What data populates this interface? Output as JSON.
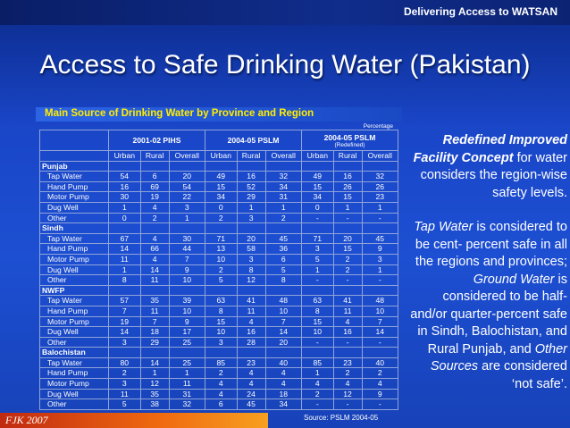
{
  "header": {
    "tagline": "Delivering Access to WATSAN",
    "title": "Access to Safe Drinking Water (Pakistan)",
    "subtitle": "Main Source of Drinking Water by Province and Region",
    "footer": "FJK 2007"
  },
  "table": {
    "unit": "Percentage",
    "groups": [
      {
        "name": "2001-02 PIHS"
      },
      {
        "name": "2004-05 PSLM"
      },
      {
        "name": "2004-05 PSLM",
        "note": "(Redefined)"
      }
    ],
    "subcolumns": [
      "Urban",
      "Rural",
      "Overall",
      "Urban",
      "Rural",
      "Overall",
      "Urban",
      "Rural",
      "Overall"
    ],
    "sections": [
      {
        "name": "Punjab",
        "rows": [
          {
            "label": "Tap Water",
            "cells": [
              54,
              6,
              20,
              49,
              16,
              32,
              49,
              16,
              32
            ]
          },
          {
            "label": "Hand Pump",
            "cells": [
              16,
              69,
              54,
              15,
              52,
              34,
              15,
              26,
              26
            ]
          },
          {
            "label": "Motor Pump",
            "cells": [
              30,
              19,
              22,
              34,
              29,
              31,
              34,
              15,
              23
            ]
          },
          {
            "label": "Dug Well",
            "cells": [
              1,
              4,
              3,
              0,
              1,
              1,
              0,
              1,
              1
            ]
          },
          {
            "label": "Other",
            "cells": [
              0,
              2,
              1,
              2,
              3,
              2,
              "-",
              "-",
              "-"
            ]
          }
        ]
      },
      {
        "name": "Sindh",
        "rows": [
          {
            "label": "Tap Water",
            "cells": [
              67,
              4,
              30,
              71,
              20,
              45,
              71,
              20,
              45
            ]
          },
          {
            "label": "Hand Pump",
            "cells": [
              14,
              66,
              44,
              13,
              58,
              36,
              3,
              15,
              9
            ]
          },
          {
            "label": "Motor Pump",
            "cells": [
              11,
              4,
              7,
              10,
              3,
              6,
              5,
              2,
              3
            ]
          },
          {
            "label": "Dug Well",
            "cells": [
              1,
              14,
              9,
              2,
              8,
              5,
              1,
              2,
              1
            ]
          },
          {
            "label": "Other",
            "cells": [
              8,
              11,
              10,
              5,
              12,
              8,
              "-",
              "-",
              "-"
            ]
          }
        ]
      },
      {
        "name": "NWFP",
        "rows": [
          {
            "label": "Tap Water",
            "cells": [
              57,
              35,
              39,
              63,
              41,
              48,
              63,
              41,
              48
            ]
          },
          {
            "label": "Hand Pump",
            "cells": [
              7,
              11,
              10,
              8,
              11,
              10,
              8,
              11,
              10
            ]
          },
          {
            "label": "Motor Pump",
            "cells": [
              19,
              7,
              9,
              15,
              4,
              7,
              15,
              4,
              7
            ]
          },
          {
            "label": "Dug Well",
            "cells": [
              14,
              18,
              17,
              10,
              16,
              14,
              10,
              16,
              14
            ]
          },
          {
            "label": "Other",
            "cells": [
              3,
              29,
              25,
              3,
              28,
              20,
              "-",
              "-",
              "-"
            ]
          }
        ]
      },
      {
        "name": "Balochistan",
        "rows": [
          {
            "label": "Tap Water",
            "cells": [
              80,
              14,
              25,
              85,
              23,
              40,
              85,
              23,
              40
            ]
          },
          {
            "label": "Hand Pump",
            "cells": [
              2,
              1,
              1,
              2,
              4,
              4,
              1,
              2,
              2
            ]
          },
          {
            "label": "Motor Pump",
            "cells": [
              3,
              12,
              11,
              4,
              4,
              4,
              4,
              4,
              4
            ]
          },
          {
            "label": "Dug Well",
            "cells": [
              11,
              35,
              31,
              4,
              24,
              18,
              2,
              12,
              9
            ]
          },
          {
            "label": "Other",
            "cells": [
              5,
              38,
              32,
              6,
              45,
              34,
              "-",
              "-",
              "-"
            ]
          }
        ]
      }
    ],
    "source": "Source: PSLM 2004-05"
  },
  "sidebar": {
    "paragraphs": [
      [
        {
          "text": "Redefined Improved Facility Concept",
          "style": "bold-italic"
        },
        {
          "text": " for water considers the region-wise safety levels."
        }
      ],
      [
        {
          "text": "Tap Water",
          "style": "italic"
        },
        {
          "text": " is considered to be cent- percent safe in all the regions and provinces; "
        },
        {
          "text": "Ground Water",
          "style": "italic"
        },
        {
          "text": " is considered to be half- and/or quarter-percent safe in Sindh, Balochistan, and Rural Punjab, and "
        },
        {
          "text": "Other Sources",
          "style": "italic"
        },
        {
          "text": " are considered ‘not safe’."
        }
      ]
    ]
  }
}
